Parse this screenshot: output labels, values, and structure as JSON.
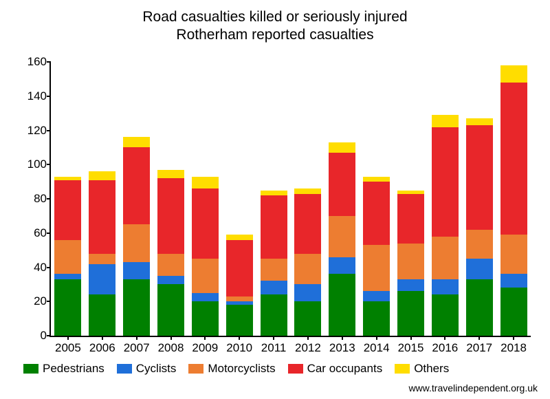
{
  "chart": {
    "type": "stacked-bar",
    "title_line1": "Road casualties killed or seriously injured",
    "title_line2": "Rotherham reported casualties",
    "title_fontsize": 21,
    "axis_fontsize": 17,
    "legend_fontsize": 17,
    "source_fontsize": 14,
    "background_color": "#ffffff",
    "axis_color": "#000000",
    "text_color": "#000000",
    "ylim": [
      0,
      160
    ],
    "ytick_step": 20,
    "yticks": [
      0,
      20,
      40,
      60,
      80,
      100,
      120,
      140,
      160
    ],
    "categories": [
      "2005",
      "2006",
      "2007",
      "2008",
      "2009",
      "2010",
      "2011",
      "2012",
      "2013",
      "2014",
      "2015",
      "2016",
      "2017",
      "2018"
    ],
    "series": [
      {
        "key": "pedestrians",
        "label": "Pedestrians",
        "color": "#008000"
      },
      {
        "key": "cyclists",
        "label": "Cyclists",
        "color": "#1f6fd9"
      },
      {
        "key": "motorcyclists",
        "label": "Motorcyclists",
        "color": "#ed7d31"
      },
      {
        "key": "car_occupants",
        "label": "Car occupants",
        "color": "#e8262a"
      },
      {
        "key": "others",
        "label": "Others",
        "color": "#ffdd00"
      }
    ],
    "data": {
      "pedestrians": [
        33,
        24,
        33,
        30,
        20,
        18,
        24,
        20,
        36,
        20,
        26,
        24,
        33,
        28
      ],
      "cyclists": [
        3,
        18,
        10,
        5,
        5,
        2,
        8,
        10,
        10,
        6,
        7,
        9,
        12,
        8
      ],
      "motorcyclists": [
        20,
        6,
        22,
        13,
        20,
        3,
        13,
        18,
        24,
        27,
        21,
        25,
        17,
        23
      ],
      "car_occupants": [
        35,
        43,
        45,
        44,
        41,
        33,
        37,
        35,
        37,
        37,
        29,
        64,
        61,
        89
      ],
      "others": [
        2,
        5,
        6,
        5,
        7,
        3,
        3,
        3,
        6,
        3,
        2,
        7,
        4,
        10
      ]
    },
    "bar_width_ratio": 0.78,
    "source_text": "www.travelindependent.org.uk"
  }
}
